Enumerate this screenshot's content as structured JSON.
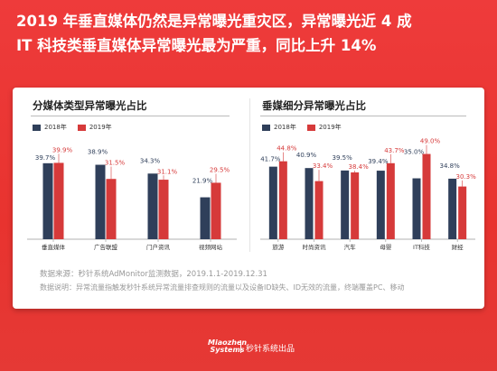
{
  "headline": {
    "line1": "2019 年垂直媒体仍然是异常曝光重灾区，异常曝光近 4 成",
    "line2": "IT 科技类垂直媒体异常曝光最为严重，同比上升 14%"
  },
  "colors": {
    "y2018": "#2f3f5a",
    "y2019": "#d63a3a",
    "accent": "#e53935"
  },
  "legend": {
    "y2018": "2018年",
    "y2019": "2019年"
  },
  "chart_data": [
    {
      "type": "bar",
      "title": "分媒体类型异常曝光占比",
      "categories": [
        "垂直媒体",
        "广告联盟",
        "门户资讯",
        "视频网站"
      ],
      "series": [
        {
          "name": "2018年",
          "values": [
            39.7,
            38.9,
            34.3,
            21.9
          ],
          "labels": [
            "39.7%",
            "38.9%",
            "34.3%",
            "21.9%"
          ]
        },
        {
          "name": "2019年",
          "values": [
            39.9,
            31.5,
            31.1,
            29.5
          ],
          "labels": [
            "39.9%",
            "31.5%",
            "31.1%",
            "29.5%"
          ]
        }
      ],
      "ylim": [
        0,
        50
      ]
    },
    {
      "type": "bar",
      "title": "垂媒细分异常曝光占比",
      "categories": [
        "旅游",
        "时尚资讯",
        "汽车",
        "母婴",
        "IT科技",
        "财经"
      ],
      "series": [
        {
          "name": "2018年",
          "values": [
            41.7,
            40.9,
            39.5,
            39.4,
            35.0,
            34.8
          ],
          "labels": [
            "41.7%",
            "40.9%",
            "39.5%",
            "39.4%",
            "35.0%",
            "34.8%"
          ]
        },
        {
          "name": "2019年",
          "values": [
            44.8,
            33.4,
            38.4,
            43.7,
            49.0,
            30.3
          ],
          "labels": [
            "44.8%",
            "33.4%",
            "38.4%",
            "43.7%",
            "49.0%",
            "30.3%"
          ]
        }
      ],
      "ylim": [
        0,
        55
      ]
    }
  ],
  "notes": {
    "source": "数据来源：秒针系统AdMonitor监测数据，2019.1.1-2019.12.31",
    "desc": "数据说明：异常流量指触发秒针系统异常流量排查规则的流量以及设备ID缺失、ID无效的流量，终端覆盖PC、移动"
  },
  "footer": {
    "logo_line1": "Miaozhen",
    "logo_line2": "Systems",
    "text": "秒针系统出品"
  }
}
